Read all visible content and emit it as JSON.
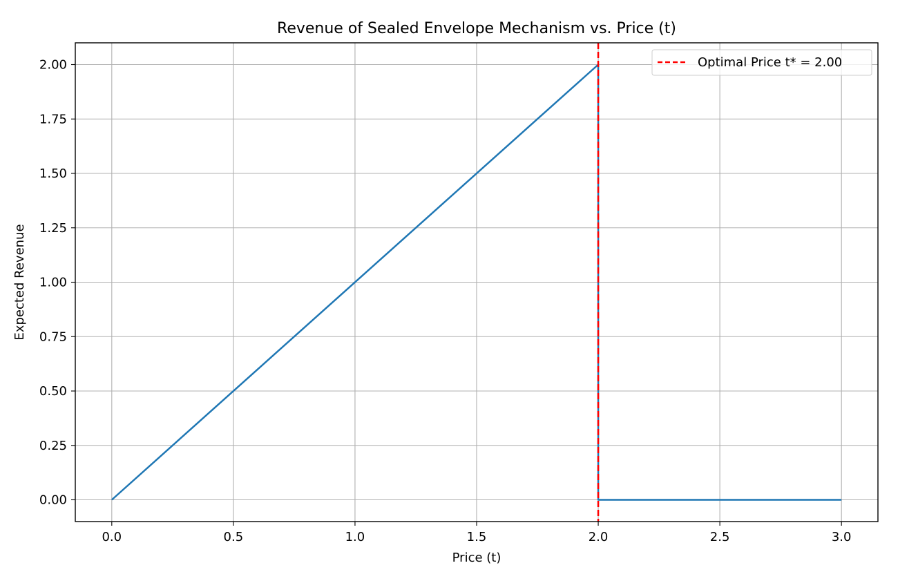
{
  "chart_data": {
    "type": "line",
    "title": "Revenue of Sealed Envelope Mechanism vs. Price (t)",
    "xlabel": "Price (t)",
    "ylabel": "Expected Revenue",
    "xlim": [
      -0.15,
      3.15
    ],
    "ylim": [
      -0.1,
      2.1
    ],
    "xticks": [
      0.0,
      0.5,
      1.0,
      1.5,
      2.0,
      2.5,
      3.0
    ],
    "xtick_labels": [
      "0.0",
      "0.5",
      "1.0",
      "1.5",
      "2.0",
      "2.5",
      "3.0"
    ],
    "yticks": [
      0.0,
      0.25,
      0.5,
      0.75,
      1.0,
      1.25,
      1.5,
      1.75,
      2.0
    ],
    "ytick_labels": [
      "0.00",
      "0.25",
      "0.50",
      "0.75",
      "1.00",
      "1.25",
      "1.50",
      "1.75",
      "2.00"
    ],
    "grid": true,
    "legend_position": "top-right",
    "series": [
      {
        "color": "#1f77b4",
        "points": [
          [
            0.0,
            0.0
          ],
          [
            2.0,
            2.0
          ],
          [
            2.0,
            0.0
          ],
          [
            3.0,
            0.0
          ]
        ]
      }
    ],
    "vline": {
      "x": 2.0,
      "label": "Optimal Price t* = 2.00",
      "color": "#ff0000",
      "style": "dashed"
    }
  }
}
